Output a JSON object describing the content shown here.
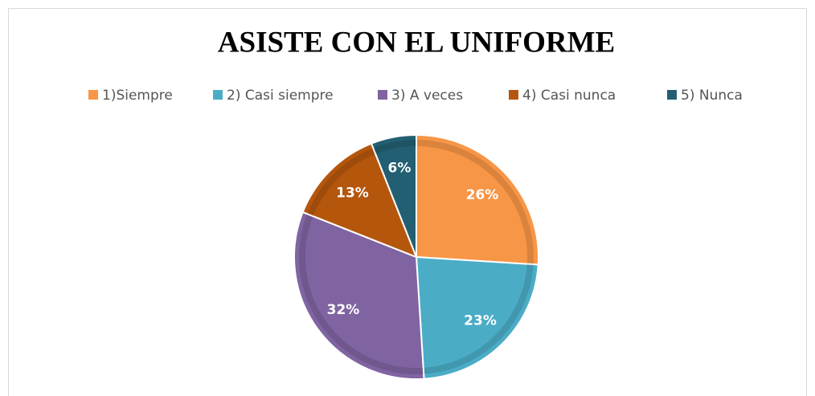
{
  "chart_data": {
    "type": "pie",
    "title": "ASISTE CON EL UNIFORME",
    "categories": [
      "1)Siempre",
      "2) Casi siempre",
      "3) A veces",
      "4) Casi nunca",
      "5) Nunca"
    ],
    "values": [
      26,
      23,
      32,
      13,
      6
    ],
    "value_labels": [
      "26%",
      "23%",
      "32%",
      "13%",
      "6%"
    ],
    "colors": [
      "#f79646",
      "#4bacc6",
      "#8064a2",
      "#b5560d",
      "#235f72"
    ],
    "legend": "top"
  }
}
